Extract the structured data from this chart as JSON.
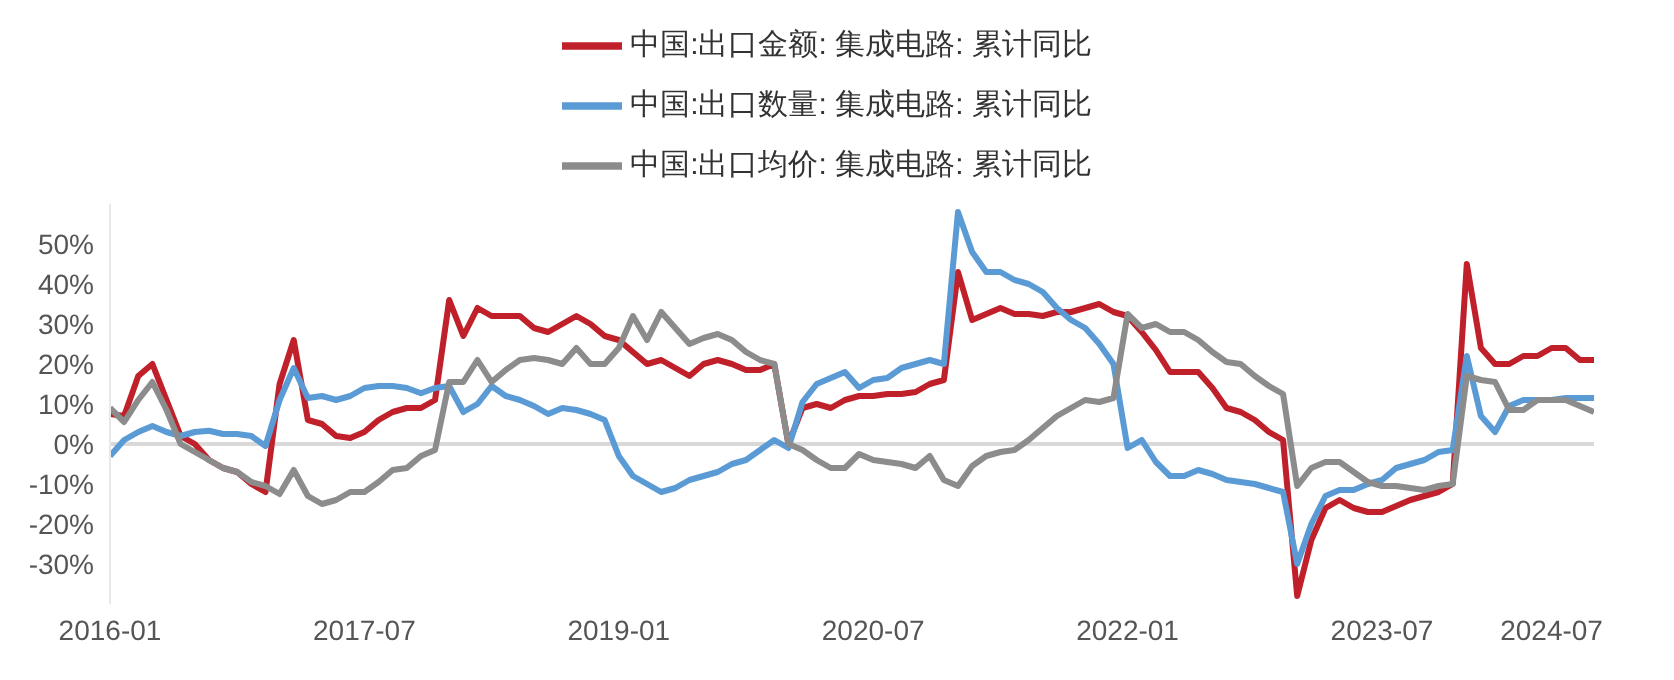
{
  "chart_data": {
    "type": "line",
    "x": [
      "2016-01",
      "2016-02",
      "2016-03",
      "2016-04",
      "2016-05",
      "2016-06",
      "2016-07",
      "2016-08",
      "2016-09",
      "2016-10",
      "2016-11",
      "2016-12",
      "2017-01",
      "2017-02",
      "2017-03",
      "2017-04",
      "2017-05",
      "2017-06",
      "2017-07",
      "2017-08",
      "2017-09",
      "2017-10",
      "2017-11",
      "2017-12",
      "2018-01",
      "2018-02",
      "2018-03",
      "2018-04",
      "2018-05",
      "2018-06",
      "2018-07",
      "2018-08",
      "2018-09",
      "2018-10",
      "2018-11",
      "2018-12",
      "2019-01",
      "2019-02",
      "2019-03",
      "2019-04",
      "2019-05",
      "2019-06",
      "2019-07",
      "2019-08",
      "2019-09",
      "2019-10",
      "2019-11",
      "2019-12",
      "2020-01",
      "2020-02",
      "2020-03",
      "2020-04",
      "2020-05",
      "2020-06",
      "2020-07",
      "2020-08",
      "2020-09",
      "2020-10",
      "2020-11",
      "2020-12",
      "2021-01",
      "2021-02",
      "2021-03",
      "2021-04",
      "2021-05",
      "2021-06",
      "2021-07",
      "2021-08",
      "2021-09",
      "2021-10",
      "2021-11",
      "2021-12",
      "2022-01",
      "2022-02",
      "2022-03",
      "2022-04",
      "2022-05",
      "2022-06",
      "2022-07",
      "2022-08",
      "2022-09",
      "2022-10",
      "2022-11",
      "2022-12",
      "2023-01",
      "2023-02",
      "2023-03",
      "2023-04",
      "2023-05",
      "2023-06",
      "2023-07",
      "2023-08",
      "2023-09",
      "2023-10",
      "2023-11",
      "2023-12",
      "2024-01",
      "2024-02",
      "2024-03",
      "2024-04",
      "2024-05",
      "2024-06",
      "2024-07",
      "2024-08",
      "2024-09",
      "2024-10"
    ],
    "series": [
      {
        "name": "中国:出口金额: 集成电路: 累计同比",
        "color": "#c0202a",
        "values": [
          7.5,
          7,
          17,
          20,
          11,
          2,
          0,
          -4,
          -6,
          -7,
          -10,
          -12,
          15,
          26,
          6,
          5,
          2,
          1.5,
          3,
          6,
          8,
          9,
          9,
          11,
          36,
          27,
          34,
          32,
          32,
          32,
          29,
          28,
          30,
          32,
          30,
          27,
          26,
          23,
          20,
          21,
          19,
          17,
          20,
          21,
          20,
          18.5,
          18.5,
          20,
          0,
          9,
          10,
          9,
          11,
          12,
          12,
          12.5,
          12.5,
          13,
          15,
          16,
          43,
          31,
          32.5,
          34,
          32.5,
          32.5,
          32,
          33,
          33,
          34,
          35,
          33,
          32,
          28,
          23.5,
          18,
          18,
          18,
          14,
          9,
          8,
          6,
          3,
          1,
          -38,
          -24,
          -16,
          -14,
          -16,
          -17,
          -17,
          -15.5,
          -14,
          -13,
          -12,
          -10,
          45,
          24,
          20,
          20,
          22,
          22,
          24,
          24,
          21,
          21
        ]
      },
      {
        "name": "中国:出口数量: 集成电路: 累计同比",
        "color": "#5b9bd5",
        "values": [
          -3,
          1,
          3,
          4.5,
          3,
          2,
          3,
          3.3,
          2.5,
          2.5,
          2,
          -0.5,
          11,
          19,
          11.5,
          12,
          11,
          12,
          14,
          14.5,
          14.5,
          14,
          12.7,
          14,
          14.5,
          8,
          10,
          14.5,
          12,
          11,
          9.5,
          7.5,
          9,
          8.5,
          7.5,
          6,
          -3,
          -8,
          -10,
          -12,
          -11,
          -9,
          -8,
          -7,
          -5,
          -4,
          -1.5,
          1,
          -1,
          10.5,
          15,
          16.5,
          18,
          14,
          16,
          16.5,
          19,
          20,
          21,
          20,
          58,
          48,
          43,
          43,
          41,
          40,
          38,
          34,
          31,
          29,
          25,
          20,
          -1,
          1,
          -4.5,
          -8,
          -8,
          -6.5,
          -7.5,
          -9,
          -9.5,
          -10,
          -11,
          -12,
          -30,
          -20,
          -13,
          -11.5,
          -11.5,
          -10,
          -9,
          -6,
          -5,
          -4,
          -2,
          -1.5,
          22,
          7,
          3,
          9.5,
          11,
          11,
          11,
          11.5,
          11.5,
          11.5
        ]
      },
      {
        "name": "中国:出口均价: 集成电路: 累计同比",
        "color": "#8c8c8c",
        "values": [
          9,
          5.5,
          11,
          15.5,
          8.5,
          0,
          -2,
          -4,
          -6,
          -7,
          -9.5,
          -10.5,
          -12.5,
          -6.5,
          -13,
          -15,
          -14,
          -12,
          -12,
          -9.5,
          -6.5,
          -6,
          -3,
          -1.5,
          15.5,
          15.5,
          21,
          15.5,
          18.5,
          21,
          21.5,
          21,
          20,
          24,
          20,
          20,
          24,
          32,
          26,
          33,
          29,
          25,
          26.5,
          27.5,
          26,
          23,
          21,
          20,
          0,
          -1.5,
          -4,
          -6,
          -6,
          -2.5,
          -4,
          -4.5,
          -5,
          -6,
          -3,
          -9,
          -10.5,
          -5.5,
          -3,
          -2,
          -1.5,
          1,
          4,
          7,
          9,
          11,
          10.5,
          11.5,
          32.5,
          29,
          30,
          28,
          28,
          26,
          23,
          20.5,
          20,
          17,
          14.5,
          12.5,
          -10.5,
          -6,
          -4.5,
          -4.5,
          -7,
          -9.5,
          -10.5,
          -10.5,
          -11,
          -11.5,
          -10.5,
          -10,
          17,
          16,
          15.5,
          8.5,
          8.5,
          11,
          11,
          11,
          9.5,
          8
        ]
      }
    ],
    "xlim": [
      "2016-01",
      "2024-10"
    ],
    "xticks": [
      "2016-01",
      "2017-07",
      "2019-01",
      "2020-07",
      "2022-01",
      "2023-07",
      "2024-07"
    ],
    "ylim": [
      -40,
      60
    ],
    "yticks": [
      {
        "value": -30,
        "label": "-30%"
      },
      {
        "value": -20,
        "label": "-20%"
      },
      {
        "value": -10,
        "label": "-10%"
      },
      {
        "value": 0,
        "label": "0%"
      },
      {
        "value": 10,
        "label": "10%"
      },
      {
        "value": 20,
        "label": "20%"
      },
      {
        "value": 30,
        "label": "30%"
      },
      {
        "value": 40,
        "label": "40%"
      },
      {
        "value": 50,
        "label": "50%"
      }
    ],
    "ref_lines": [
      {
        "axis": "y",
        "value": 0,
        "color": "#d9d9d9"
      }
    ],
    "grid": false,
    "legend": "top",
    "line_style": "solid"
  }
}
